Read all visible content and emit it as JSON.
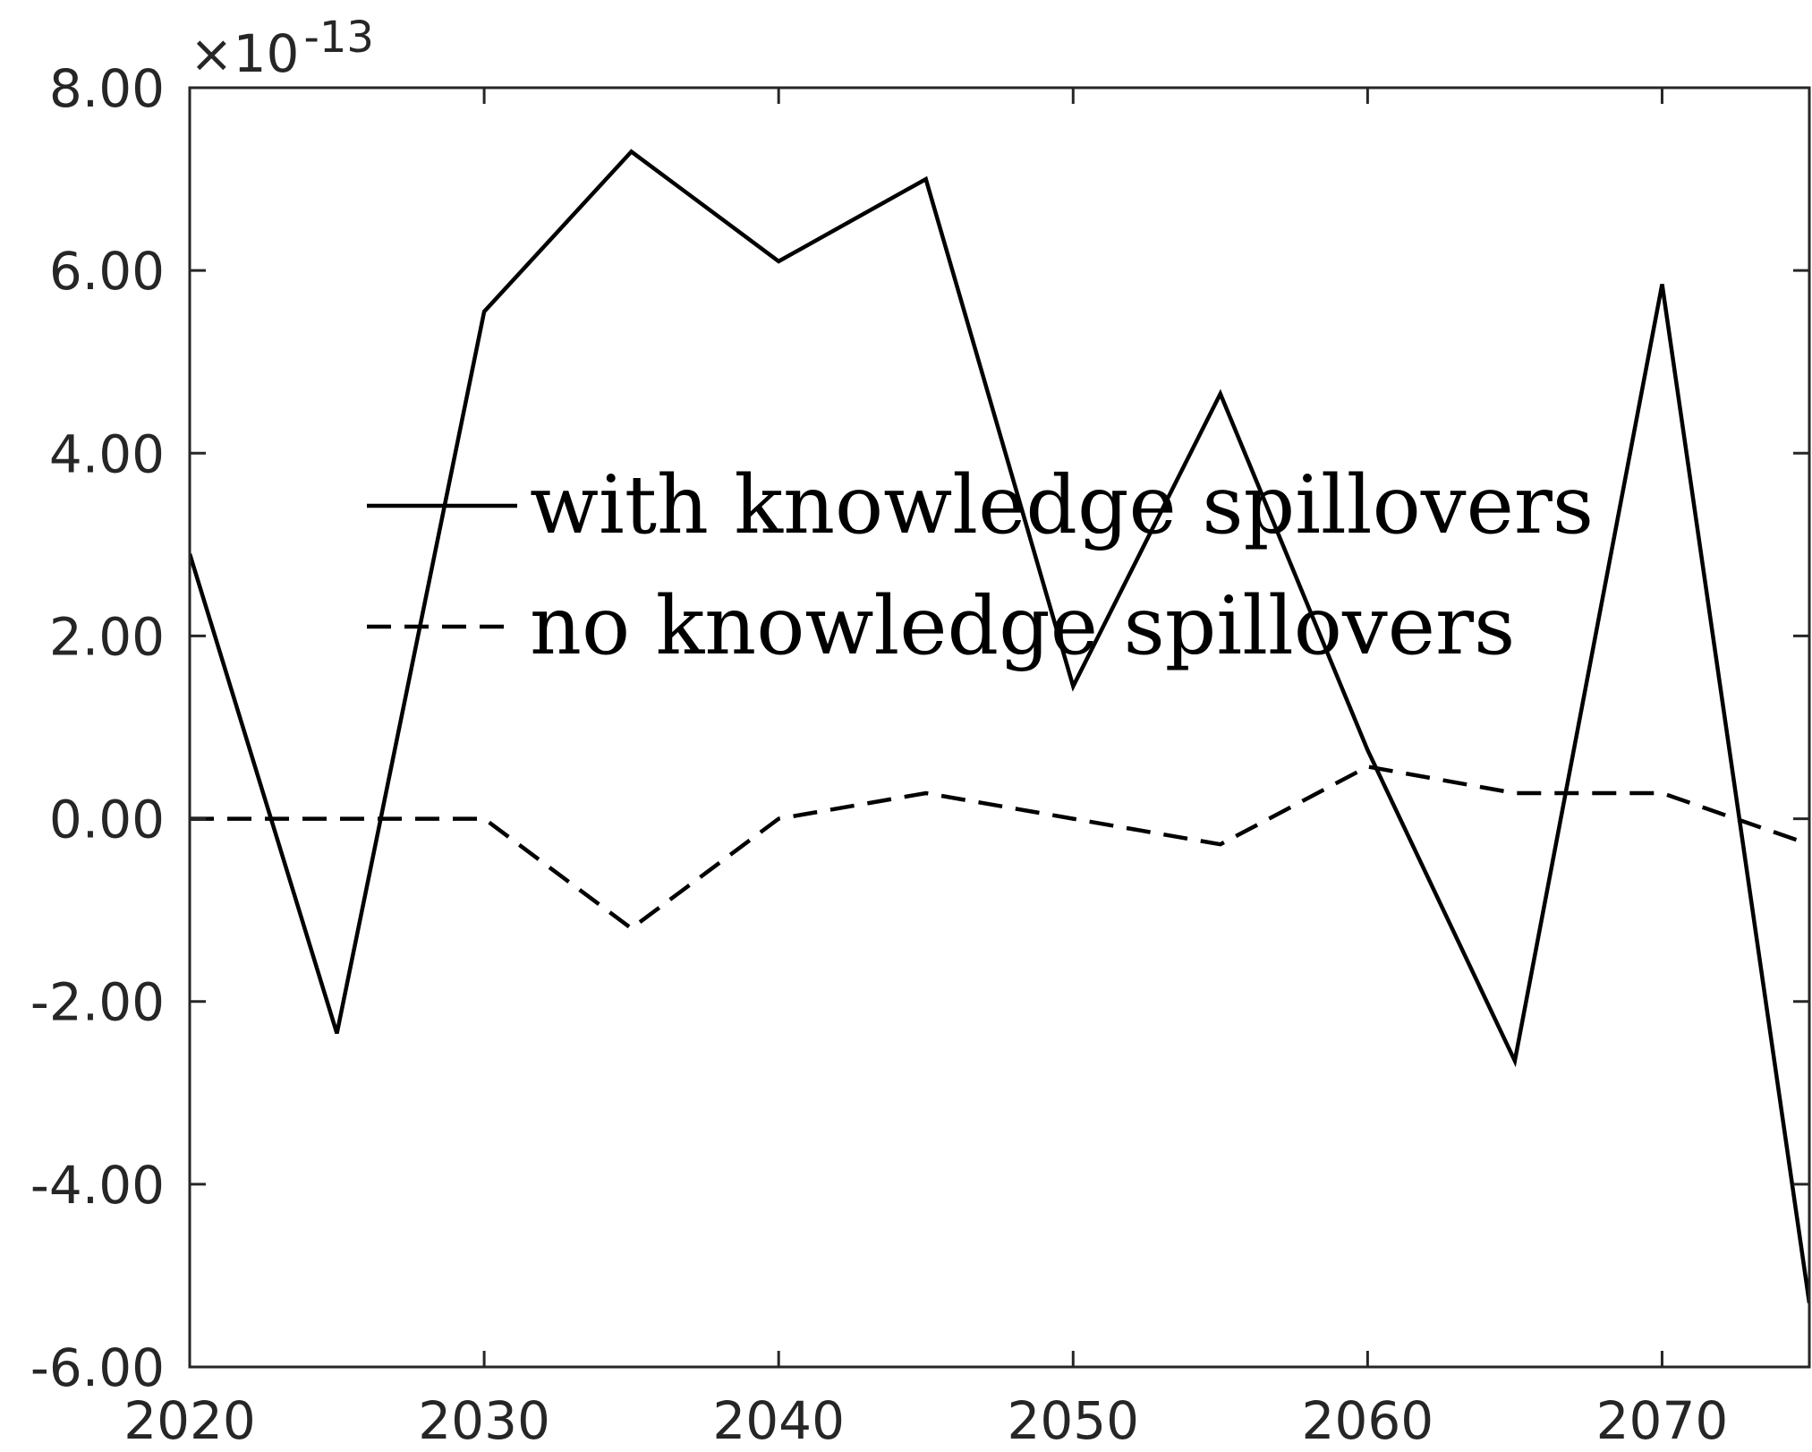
{
  "chart_data": {
    "type": "line",
    "title": "",
    "xlabel": "",
    "ylabel": "",
    "exponent_prefix": "×10",
    "exponent_power": "-13",
    "x": [
      2020,
      2025,
      2030,
      2035,
      2040,
      2045,
      2050,
      2055,
      2060,
      2065,
      2070,
      2075
    ],
    "xlim": [
      2020,
      2075
    ],
    "ylim": [
      -6,
      8
    ],
    "xticks": [
      2020,
      2030,
      2040,
      2050,
      2060,
      2070
    ],
    "xtick_labels": [
      "2020",
      "2030",
      "2040",
      "2050",
      "2060",
      "2070"
    ],
    "yticks": [
      -6,
      -4,
      -2,
      0,
      2,
      4,
      6,
      8
    ],
    "ytick_labels": [
      "-6.00",
      "-4.00",
      "-2.00",
      "0.00",
      "2.00",
      "4.00",
      "6.00",
      "8.00"
    ],
    "grid": false,
    "legend_position": "center-left",
    "series": [
      {
        "name": "with knowledge spillovers",
        "style": "solid",
        "color": "#000000",
        "values": [
          2.9,
          -2.35,
          5.55,
          7.3,
          6.1,
          7.0,
          1.45,
          4.65,
          0.75,
          -2.65,
          5.85,
          -5.3
        ]
      },
      {
        "name": "no knowledge spillovers",
        "style": "dashed",
        "color": "#000000",
        "values": [
          0.0,
          0.0,
          0.0,
          -1.2,
          0.0,
          0.28,
          0.0,
          -0.28,
          0.57,
          0.28,
          0.28,
          -0.28
        ]
      }
    ]
  }
}
